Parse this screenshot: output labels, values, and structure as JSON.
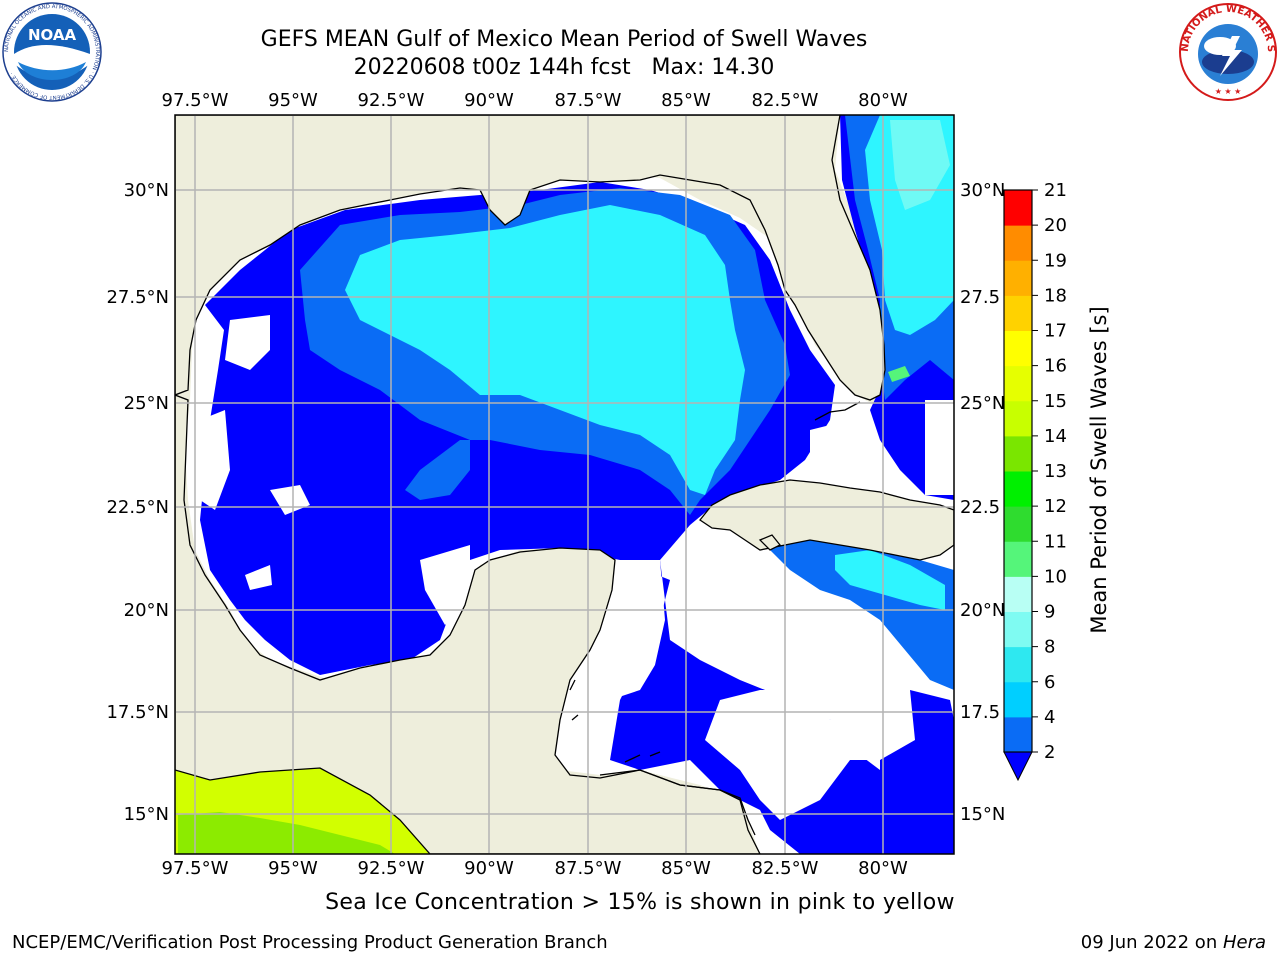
{
  "title_line1": "GEFS MEAN Gulf of Mexico Mean Period of Swell Waves",
  "title_line2": "20220608 t00z 144h fcst   Max: 14.30",
  "lon_labels": [
    "97.5°W",
    "95°W",
    "92.5°W",
    "90°W",
    "87.5°W",
    "85°W",
    "82.5°W",
    "80°W"
  ],
  "lat_labels_left": [
    "30°N",
    "27.5°N",
    "25°N",
    "22.5°N",
    "20°N",
    "17.5°N",
    "15°N"
  ],
  "lat_labels_right": [
    "30°N",
    "27.5",
    "25°N",
    "22.5",
    "20°N",
    "17.5",
    "15°N"
  ],
  "colorbar": {
    "label": "Mean Period of Swell Waves [s]",
    "ticks": [
      "2",
      "4",
      "6",
      "8",
      "9",
      "10",
      "11",
      "12",
      "13",
      "14",
      "15",
      "16",
      "17",
      "18",
      "19",
      "20",
      "21"
    ],
    "colors": [
      "#0a6cf5",
      "#00cfff",
      "#2ee8f0",
      "#7ffbf2",
      "#b8fff4",
      "#55f57a",
      "#2fdc2f",
      "#00f000",
      "#7ae600",
      "#c8ff00",
      "#e6ff00",
      "#ffff00",
      "#ffd200",
      "#ffb000",
      "#ff8c00",
      "#ff6600",
      "#ff3c00",
      "#ff0000"
    ],
    "arrow_color": "#0000ff"
  },
  "colors": {
    "land": "#eeeedc",
    "swell_dark": "#0000ff",
    "swell_mid": "#0a6cf5",
    "swell_light": "#2ef5ff",
    "swell_pale": "#7ffbf2",
    "swell_green": "#55f57a",
    "high_yellow": "#d2ff00",
    "high_green": "#7ae600",
    "grid": "#b4b4b4"
  },
  "logos": {
    "noaa": {
      "text": "NOAA",
      "ring_text": "NATIONAL OCEANIC AND ATMOSPHERIC ADMINISTRATION · U.S. DEPARTMENT OF COMMERCE ·"
    },
    "nws": {
      "ring_text": "NATIONAL WEATHER SERVICE"
    }
  },
  "note": "Sea Ice Concentration > 15% is shown in pink to yellow",
  "footer_left": "NCEP/EMC/Verification Post Processing Product Generation Branch",
  "footer_right_date": "09 Jun 2022 on ",
  "footer_right_machine": "Hera"
}
